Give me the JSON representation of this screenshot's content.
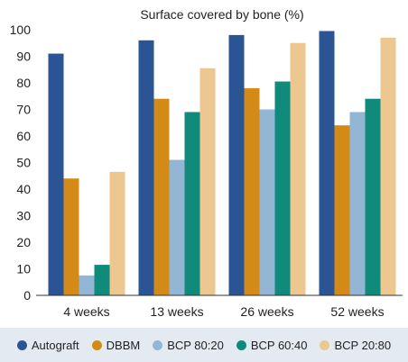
{
  "chart_data": {
    "type": "bar",
    "title": "Surface covered by bone (%)",
    "xlabel": "",
    "ylabel": "",
    "ylim": [
      0,
      100
    ],
    "yticks": [
      "0",
      "10",
      "20",
      "30",
      "40",
      "50",
      "60",
      "70",
      "80",
      "90",
      "100"
    ],
    "categories": [
      "4 weeks",
      "13 weeks",
      "26 weeks",
      "52 weeks"
    ],
    "series": [
      {
        "name": "Autograft",
        "color": "#2a5494",
        "values": [
          91,
          96,
          98,
          99.5
        ]
      },
      {
        "name": "DBBM",
        "color": "#d38a17",
        "values": [
          44,
          74,
          78,
          64
        ]
      },
      {
        "name": "BCP 80:20",
        "color": "#93b6d4",
        "values": [
          7.5,
          51,
          70,
          69
        ]
      },
      {
        "name": "BCP 60:40",
        "color": "#0f8a7b",
        "values": [
          11.5,
          69,
          80.5,
          74
        ]
      },
      {
        "name": "BCP 20:80",
        "color": "#ecc78f",
        "values": [
          46.5,
          85.5,
          95,
          97
        ]
      }
    ],
    "grid": false,
    "legend_position": "bottom"
  }
}
